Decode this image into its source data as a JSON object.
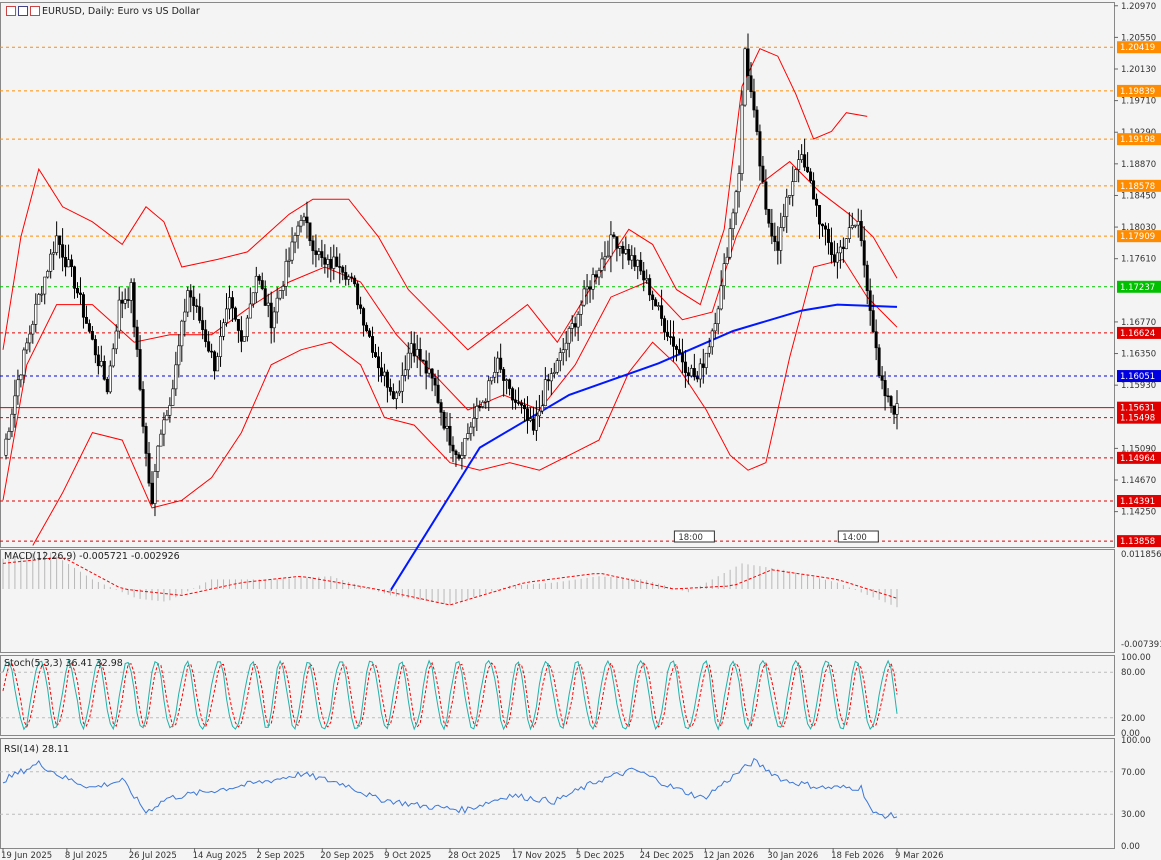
{
  "header": {
    "title": "EURUSD, Daily:  Euro vs US Dollar"
  },
  "panes": {
    "macd": {
      "label": "MACD(12,26,9) -0.005721 -0.002926",
      "axis_top": "0.011856",
      "axis_bottom": "-0.007391"
    },
    "stoch": {
      "label": "Stoch(5,3,3) 36.41 32.98",
      "levels": [
        "100.00",
        "80.00",
        "20.00",
        "0.00"
      ]
    },
    "rsi": {
      "label": "RSI(14) 28.11",
      "levels": [
        "100.00",
        "70.00",
        "30.00",
        "0.00"
      ]
    }
  },
  "time_markers": [
    "18:00",
    "14:00"
  ],
  "colors": {
    "bg": "#f4f4f4",
    "candle": "#000000",
    "ma": "#0018ff",
    "bands": "#ff0000",
    "macd_hist": "#b8b8b8",
    "macd_signal": "#ff0000",
    "stoch_main": "#20b2aa",
    "stoch_signal": "#ff0000",
    "rsi": "#3c78d8"
  },
  "chart_data": {
    "type": "candlestick",
    "symbol": "EURUSD",
    "timeframe": "Daily",
    "price_axis_labels": [
      "1.20970",
      "1.20550",
      "1.20130",
      "1.19710",
      "1.19290",
      "1.18870",
      "1.18450",
      "1.18030",
      "1.17610",
      "1.16770",
      "1.16350",
      "1.15930",
      "1.15090",
      "1.14670",
      "1.14250"
    ],
    "price_range": [
      1.1378,
      1.2102
    ],
    "levels": [
      {
        "price": 1.20419,
        "label": "1.20419",
        "color": "#ff8c00",
        "style": "dashed"
      },
      {
        "price": 1.19839,
        "label": "1.19839",
        "color": "#ff8c00",
        "style": "dashed"
      },
      {
        "price": 1.19198,
        "label": "1.19198",
        "color": "#ff8c00",
        "style": "dashed"
      },
      {
        "price": 1.18578,
        "label": "1.18578",
        "color": "#ff8c00",
        "style": "dashed"
      },
      {
        "price": 1.17909,
        "label": "1.17909",
        "color": "#ff8c00",
        "style": "dashed"
      },
      {
        "price": 1.17237,
        "label": "1.17237",
        "color": "#00c000",
        "style": "dashed"
      },
      {
        "price": 1.16624,
        "label": "1.16624",
        "color": "#e00000",
        "style": "dashed"
      },
      {
        "price": 1.16051,
        "label": "1.16051",
        "color": "#0000e0",
        "style": "dashed"
      },
      {
        "price": 1.15631,
        "label": "1.15631",
        "color": "#e00000",
        "style": "solid"
      },
      {
        "price": 1.15498,
        "label": "1.15498",
        "color": "#e00000",
        "style": "dashed"
      },
      {
        "price": 1.14964,
        "label": "1.14964",
        "color": "#e00000",
        "style": "dashed"
      },
      {
        "price": 1.14391,
        "label": "1.14391",
        "color": "#e00000",
        "style": "dashed"
      },
      {
        "price": 1.13858,
        "label": "1.13858",
        "color": "#e00000",
        "style": "dashed"
      }
    ],
    "date_labels": [
      "19 Jun 2025",
      "8 Jul 2025",
      "26 Jul 2025",
      "14 Aug 2025",
      "2 Sep 2025",
      "20 Sep 2025",
      "9 Oct 2025",
      "28 Oct 2025",
      "17 Nov 2025",
      "5 Dec 2025",
      "24 Dec 2025",
      "12 Jan 2026",
      "30 Jan 2026",
      "18 Feb 2026",
      "9 Mar 2026"
    ],
    "close_anchors": [
      [
        0,
        1.15
      ],
      [
        5,
        1.16
      ],
      [
        12,
        1.171
      ],
      [
        18,
        1.179
      ],
      [
        24,
        1.173
      ],
      [
        30,
        1.165
      ],
      [
        35,
        1.159
      ],
      [
        39,
        1.17
      ],
      [
        43,
        1.172
      ],
      [
        48,
        1.15
      ],
      [
        50,
        1.143
      ],
      [
        52,
        1.152
      ],
      [
        57,
        1.159
      ],
      [
        62,
        1.172
      ],
      [
        66,
        1.168
      ],
      [
        71,
        1.162
      ],
      [
        76,
        1.17
      ],
      [
        80,
        1.165
      ],
      [
        85,
        1.174
      ],
      [
        90,
        1.168
      ],
      [
        96,
        1.176
      ],
      [
        100,
        1.182
      ],
      [
        103,
        1.179
      ],
      [
        108,
        1.175
      ],
      [
        113,
        1.176
      ],
      [
        118,
        1.172
      ],
      [
        122,
        1.167
      ],
      [
        127,
        1.161
      ],
      [
        132,
        1.158
      ],
      [
        137,
        1.165
      ],
      [
        141,
        1.162
      ],
      [
        145,
        1.159
      ],
      [
        149,
        1.153
      ],
      [
        153,
        1.15
      ],
      [
        157,
        1.154
      ],
      [
        162,
        1.158
      ],
      [
        166,
        1.162
      ],
      [
        170,
        1.158
      ],
      [
        174,
        1.156
      ],
      [
        178,
        1.153
      ],
      [
        182,
        1.159
      ],
      [
        186,
        1.162
      ],
      [
        191,
        1.167
      ],
      [
        196,
        1.172
      ],
      [
        201,
        1.176
      ],
      [
        205,
        1.179
      ],
      [
        209,
        1.177
      ],
      [
        213,
        1.175
      ],
      [
        217,
        1.172
      ],
      [
        221,
        1.168
      ],
      [
        225,
        1.165
      ],
      [
        229,
        1.162
      ],
      [
        233,
        1.16
      ],
      [
        237,
        1.165
      ],
      [
        241,
        1.172
      ],
      [
        244,
        1.18
      ],
      [
        247,
        1.188
      ],
      [
        249,
        1.204
      ],
      [
        251,
        1.198
      ],
      [
        253,
        1.192
      ],
      [
        256,
        1.182
      ],
      [
        260,
        1.178
      ],
      [
        264,
        1.185
      ],
      [
        267,
        1.19
      ],
      [
        271,
        1.186
      ],
      [
        275,
        1.18
      ],
      [
        279,
        1.176
      ],
      [
        283,
        1.179
      ],
      [
        287,
        1.181
      ],
      [
        291,
        1.17
      ],
      [
        294,
        1.16
      ],
      [
        297,
        1.157
      ],
      [
        300,
        1.156
      ]
    ],
    "ma_points": [
      [
        130,
        1.132
      ],
      [
        160,
        1.151
      ],
      [
        190,
        1.158
      ],
      [
        220,
        1.1622
      ],
      [
        245,
        1.1665
      ],
      [
        268,
        1.1692
      ],
      [
        280,
        1.17
      ],
      [
        300,
        1.1697
      ]
    ],
    "bands": {
      "upper": [
        [
          0,
          1.164
        ],
        [
          6,
          1.179
        ],
        [
          12,
          1.188
        ],
        [
          20,
          1.183
        ],
        [
          30,
          1.181
        ],
        [
          40,
          1.178
        ],
        [
          48,
          1.183
        ],
        [
          54,
          1.181
        ],
        [
          60,
          1.175
        ],
        [
          72,
          1.176
        ],
        [
          82,
          1.177
        ],
        [
          96,
          1.182
        ],
        [
          104,
          1.184
        ],
        [
          116,
          1.184
        ],
        [
          126,
          1.179
        ],
        [
          136,
          1.172
        ],
        [
          146,
          1.168
        ],
        [
          156,
          1.164
        ],
        [
          166,
          1.167
        ],
        [
          176,
          1.17
        ],
        [
          186,
          1.165
        ],
        [
          200,
          1.174
        ],
        [
          210,
          1.18
        ],
        [
          218,
          1.178
        ],
        [
          226,
          1.172
        ],
        [
          234,
          1.17
        ],
        [
          242,
          1.18
        ],
        [
          248,
          1.199
        ],
        [
          254,
          1.204
        ],
        [
          260,
          1.203
        ],
        [
          266,
          1.198
        ],
        [
          272,
          1.192
        ],
        [
          278,
          1.193
        ],
        [
          283,
          1.1955
        ],
        [
          290,
          1.195
        ]
      ],
      "middle": [
        [
          0,
          1.144
        ],
        [
          8,
          1.162
        ],
        [
          18,
          1.17
        ],
        [
          30,
          1.17
        ],
        [
          44,
          1.165
        ],
        [
          56,
          1.166
        ],
        [
          70,
          1.166
        ],
        [
          84,
          1.17
        ],
        [
          96,
          1.173
        ],
        [
          108,
          1.175
        ],
        [
          120,
          1.173
        ],
        [
          132,
          1.166
        ],
        [
          144,
          1.161
        ],
        [
          156,
          1.156
        ],
        [
          168,
          1.158
        ],
        [
          180,
          1.156
        ],
        [
          192,
          1.162
        ],
        [
          204,
          1.171
        ],
        [
          216,
          1.173
        ],
        [
          228,
          1.168
        ],
        [
          238,
          1.169
        ],
        [
          246,
          1.179
        ],
        [
          254,
          1.186
        ],
        [
          264,
          1.189
        ],
        [
          274,
          1.185
        ],
        [
          284,
          1.182
        ],
        [
          292,
          1.179
        ],
        [
          300,
          1.1735
        ]
      ],
      "lower": [
        [
          10,
          1.138
        ],
        [
          20,
          1.145
        ],
        [
          30,
          1.153
        ],
        [
          40,
          1.152
        ],
        [
          50,
          1.143
        ],
        [
          60,
          1.144
        ],
        [
          70,
          1.147
        ],
        [
          80,
          1.153
        ],
        [
          90,
          1.162
        ],
        [
          100,
          1.164
        ],
        [
          110,
          1.165
        ],
        [
          120,
          1.162
        ],
        [
          128,
          1.155
        ],
        [
          138,
          1.154
        ],
        [
          150,
          1.149
        ],
        [
          160,
          1.148
        ],
        [
          170,
          1.149
        ],
        [
          180,
          1.148
        ],
        [
          190,
          1.15
        ],
        [
          200,
          1.152
        ],
        [
          210,
          1.161
        ],
        [
          218,
          1.165
        ],
        [
          226,
          1.162
        ],
        [
          236,
          1.156
        ],
        [
          244,
          1.15
        ],
        [
          250,
          1.148
        ],
        [
          256,
          1.149
        ],
        [
          264,
          1.163
        ],
        [
          272,
          1.175
        ],
        [
          282,
          1.176
        ],
        [
          290,
          1.171
        ],
        [
          300,
          1.167
        ]
      ]
    },
    "last_price": 1.15631
  }
}
